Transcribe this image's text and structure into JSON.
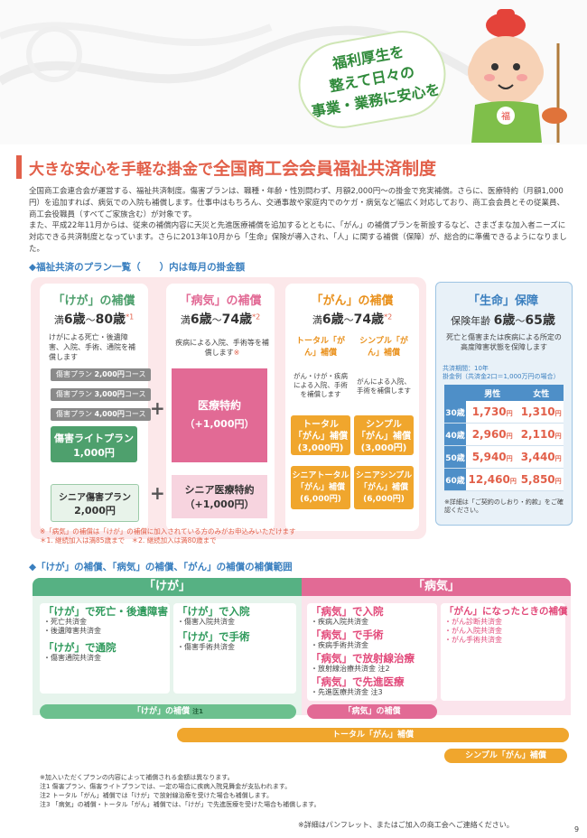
{
  "hero": {
    "bubble_lines": [
      "福利厚生を",
      "整えて日々の",
      "事業・業務に安心を"
    ]
  },
  "title": {
    "prefix": "大きな安心を手軽な掛金で",
    "main": "全国商工会会員福祉共済制度"
  },
  "intro": [
    "全国商工会連合会が運営する、福祉共済制度。傷害プランは、職種・年齢・性別問わず、月額2,000円〜の掛金で充実補償。さらに、医療特約（月額1,000円）を追加すれば、病気での入院も補償します。仕事中はもちろん、交通事故や家庭内でのケガ・病気など幅広く対応しており、商工会会員とその従業員、商工会役職員（すべてご家族含む）が対象です。",
    "また、平成22年11月からは、従来の補償内容に天災と先進医療補償を追加するとともに、「がん」の補償プランを新設するなど、さまざまな加入者ニーズに対応できる共済制度となっています。さらに2013年10月から「生命」保険が導入され、「人」に関する補償（保障）が、総合的に準備できるようになりました。"
  ],
  "plans_heading": "◆福祉共済のプラン一覧（　　）内は毎月の掛金額",
  "injury": {
    "title": "「けが」の補償",
    "age_prefix": "満",
    "age_from": "6歳",
    "age_sep": "〜",
    "age_to": "80歳",
    "mark": "*1",
    "desc": "けがによる死亡・後遺障害、入院、手術、通院を補償します",
    "plans": [
      {
        "name": "傷害プラン",
        "price": "2,000円",
        "suffix": "コース"
      },
      {
        "name": "傷害プラン",
        "price": "3,000円",
        "suffix": "コース"
      },
      {
        "name": "傷害プラン",
        "price": "4,000円",
        "suffix": "コース"
      }
    ],
    "light_name": "傷害ライトプラン",
    "light_price": "1,000円",
    "senior_name": "シニア傷害プラン",
    "senior_price": "2,000円"
  },
  "plus": "+",
  "sickness": {
    "title": "「病気」の補償",
    "age_prefix": "満",
    "age_from": "6歳",
    "age_sep": "〜",
    "age_to": "74歳",
    "mark": "*2",
    "desc": "疾病による入院、手術等を補償します",
    "desc_mark": "※",
    "medical_name": "医療特約",
    "medical_price": "（+1,000円）",
    "senior_name": "シニア医療特約",
    "senior_price": "（+1,000円）"
  },
  "cancer": {
    "title": "「がん」の補償",
    "age_prefix": "満",
    "age_from": "6歳",
    "age_sep": "〜",
    "age_to": "74歳",
    "mark": "*2",
    "total_label": "トータル「がん」補償",
    "simple_label": "シンプル「がん」補償",
    "total_desc": "がん・けが・疾病による入院、手術を補償します",
    "simple_desc": "がんによる入院、手術を補償します",
    "boxes": [
      {
        "l1": "トータル",
        "l2": "「がん」補償",
        "l3": "(3,000円)"
      },
      {
        "l1": "シンプル",
        "l2": "「がん」補償",
        "l3": "(3,000円)"
      },
      {
        "l1": "シニアトータル",
        "l2": "「がん」補償",
        "l3": "(6,000円)"
      },
      {
        "l1": "シニアシンプル",
        "l2": "「がん」補償",
        "l3": "(6,000円)"
      }
    ]
  },
  "life": {
    "title": "「生命」保障",
    "age_label": "保険年齢",
    "age_from": "6歳",
    "age_sep": "〜",
    "age_to": "65歳",
    "desc": "死亡と傷害または疾病による所定の高度障害状態を保障します",
    "period": "共済期間：10年",
    "example": "掛金例（共済金2口＝1,000万円の場合）",
    "headers": [
      "男性",
      "女性"
    ],
    "rows": [
      {
        "age": "30歳",
        "male": "1,730",
        "female": "1,310"
      },
      {
        "age": "40歳",
        "male": "2,960",
        "female": "2,110"
      },
      {
        "age": "50歳",
        "male": "5,940",
        "female": "3,440"
      },
      {
        "age": "60歳",
        "male": "12,460",
        "female": "5,850"
      }
    ],
    "yen": "円",
    "note": "※詳細は「ご契約のしおり・約款」をご確認ください。"
  },
  "plan_notes": [
    "※「病気」の補償は「けが」の補償に加入されている方のみがお申込みいただけます",
    "＊1. 継続加入は満85歳まで　＊2. 継続加入は満80歳まで"
  ],
  "coverage_heading": "◆「けが」の補償、「病気」の補償、「がん」の補償の補償範囲",
  "coverage": {
    "injury_header": "「けが」",
    "sickness_header": "「病気」",
    "injury_a": [
      {
        "title": "「けが」で死亡・後遺障害",
        "subs": [
          "・死亡共済金",
          "・後遺障害共済金"
        ]
      },
      {
        "title": "「けが」で通院",
        "subs": [
          "・傷害通院共済金"
        ]
      }
    ],
    "injury_b": [
      {
        "title": "「けが」で入院",
        "subs": [
          "・傷害入院共済金"
        ]
      },
      {
        "title": "「けが」で手術",
        "subs": [
          "・傷害手術共済金"
        ]
      }
    ],
    "sickness_a": [
      {
        "title": "「病気」で入院",
        "subs": [
          "・疾病入院共済金"
        ]
      },
      {
        "title": "「病気」で手術",
        "subs": [
          "・疾病手術共済金"
        ]
      },
      {
        "title": "「病気」で放射線治療",
        "subs": [
          "・放射線治療共済金 注2"
        ]
      },
      {
        "title": "「病気」で先進医療",
        "subs": [
          "・先進医療共済金 注3"
        ]
      }
    ],
    "sickness_b": [
      {
        "title": "「がん」になったときの補償",
        "subs": [
          "・がん診断共済金",
          "・がん入院共済金",
          "・がん手術共済金"
        ]
      }
    ],
    "band_injury": "「けが」の補償",
    "band_injury_note": "注1",
    "band_sickness": "「病気」の補償",
    "band_total": "トータル「がん」補償",
    "band_simple": "シンプル「がん」補償"
  },
  "footnotes": [
    "※加入いただくプランの内容によって補償される金額は異なります。",
    "注1 傷害プラン、傷害ライトプランでは、一定の場合に疾病入院見舞金が支払われます。",
    "注2 トータル「がん」補償では「けが」で放射線治療を受けた場合も補償します。",
    "注3 「病気」の補償・トータル「がん」補償では、「けが」で先進医療を受けた場合も補償します。"
  ],
  "contact": "※詳細はパンフレット、またはご加入の商工会へご連絡ください。",
  "page_no": "9",
  "colors": {
    "accent": "#e2604a",
    "injury": "#4ea06d",
    "sickness": "#e26a95",
    "cancer": "#f0a62d",
    "life": "#4e8fc8"
  }
}
